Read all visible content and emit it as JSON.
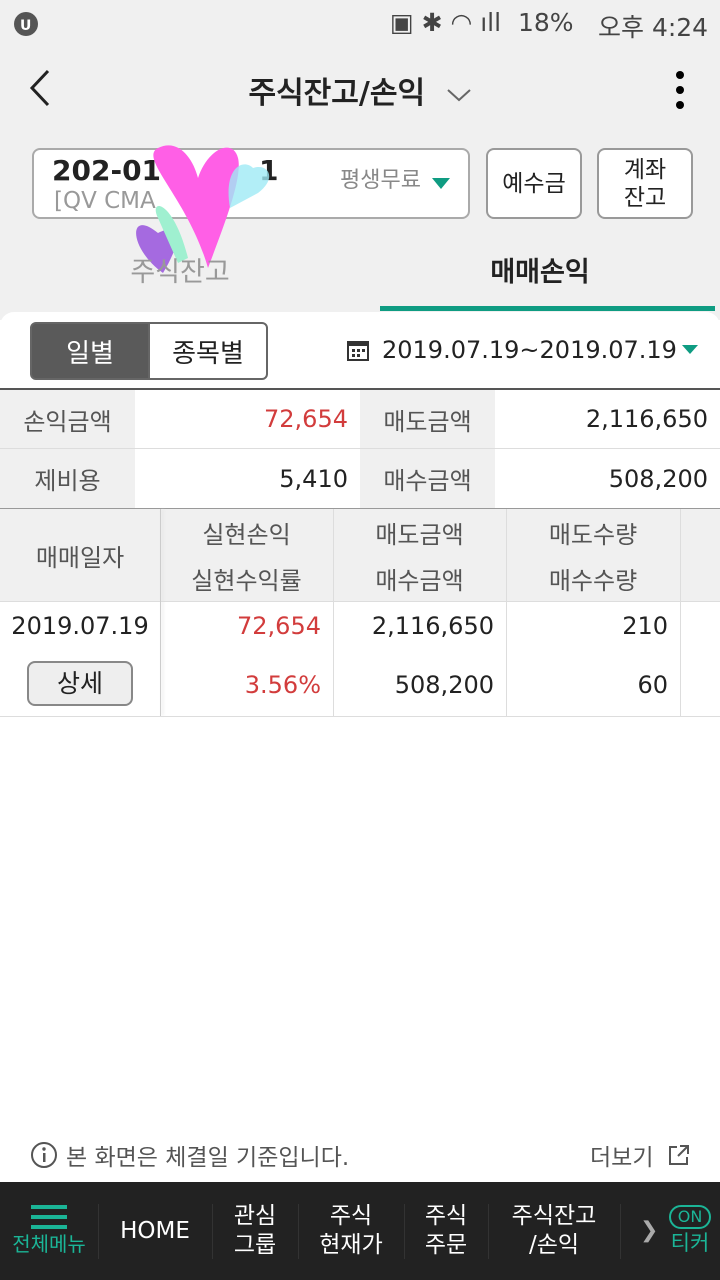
{
  "status_bar": {
    "battery": "18%",
    "time": "오후 4:24"
  },
  "header": {
    "title": "주식잔고/손익"
  },
  "account": {
    "number_visible": "202-01",
    "number_suffix": "1",
    "type_visible": "[QV CMA",
    "plan": "평생무료"
  },
  "buttons": {
    "deposit": "예수금",
    "account_balance_line1": "계좌",
    "account_balance_line2": "잔고"
  },
  "tabs": [
    {
      "label": "주식잔고",
      "active": false
    },
    {
      "label": "매매손익",
      "active": true
    }
  ],
  "segment": [
    {
      "label": "일별",
      "active": true
    },
    {
      "label": "종목별",
      "active": false
    }
  ],
  "date_range": "2019.07.19~2019.07.19",
  "summary": {
    "pl_label": "손익금액",
    "pl_value": "72,654",
    "sell_label": "매도금액",
    "sell_value": "2,116,650",
    "fee_label": "제비용",
    "fee_value": "5,410",
    "buy_label": "매수금액",
    "buy_value": "508,200"
  },
  "table": {
    "headers": {
      "date": "매매일자",
      "realized_pl": "실현손익",
      "realized_rate": "실현수익률",
      "sell_amt": "매도금액",
      "buy_amt": "매수금액",
      "sell_qty": "매도수량",
      "buy_qty": "매수수량"
    },
    "rows": [
      {
        "date": "2019.07.19",
        "detail": "상세",
        "realized_pl": "72,654",
        "realized_rate": "3.56%",
        "sell_amt": "2,116,650",
        "buy_amt": "508,200",
        "sell_qty": "210",
        "buy_qty": "60"
      }
    ]
  },
  "footer": {
    "notice": "본 화면은 체결일 기준입니다.",
    "more": "더보기"
  },
  "nav": {
    "menu": "전체메뉴",
    "home": "HOME",
    "watch1": "관심",
    "watch2": "그룹",
    "price1": "주식",
    "price2": "현재가",
    "order1": "주식",
    "order2": "주문",
    "balance1": "주식잔고",
    "balance2": "/손익",
    "ticker_badge": "ON",
    "ticker": "티커"
  },
  "colors": {
    "accent": "#0f9c82",
    "loss_red": "#d23c3c",
    "nav_bg": "#222222"
  }
}
